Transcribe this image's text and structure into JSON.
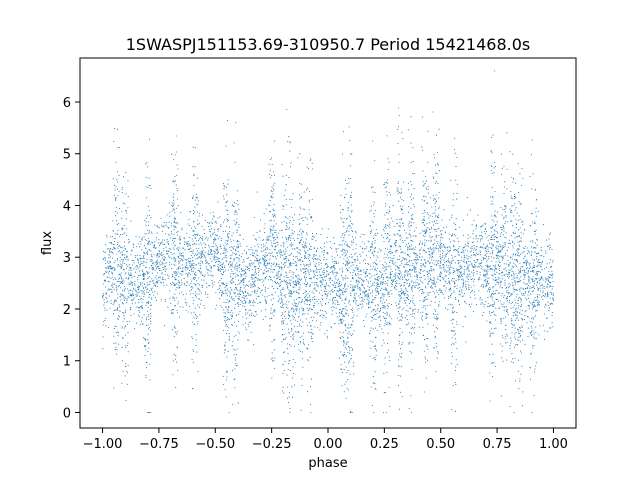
{
  "chart_data": {
    "type": "scatter",
    "title": "1SWASPJ151153.69-310950.7 Period 15421468.0s",
    "xlabel": "phase",
    "ylabel": "flux",
    "xlim": [
      -1.1,
      1.1
    ],
    "ylim": [
      -0.3,
      6.85
    ],
    "grid": false,
    "legend": "none",
    "marker_color": "#1f77b4",
    "x_ticks": [
      -1.0,
      -0.75,
      -0.5,
      -0.25,
      0.0,
      0.25,
      0.5,
      0.75,
      1.0
    ],
    "x_tick_labels": [
      "−1.00",
      "−0.75",
      "−0.50",
      "−0.25",
      "0.00",
      "0.25",
      "0.50",
      "0.75",
      "1.00"
    ],
    "y_ticks": [
      0,
      1,
      2,
      3,
      4,
      5,
      6
    ],
    "y_tick_labels": [
      "0",
      "1",
      "2",
      "3",
      "4",
      "5",
      "6"
    ],
    "series": [
      {
        "x": [
          -1.0,
          -0.95,
          -0.9,
          -0.85,
          -0.8,
          -0.75,
          -0.7,
          -0.65,
          -0.6,
          -0.55,
          -0.5,
          -0.45,
          -0.4,
          -0.35,
          -0.3,
          -0.25,
          -0.2,
          -0.15,
          -0.1,
          -0.05,
          0.0,
          0.05,
          0.1,
          0.15,
          0.2,
          0.25,
          0.3,
          0.35,
          0.4,
          0.45,
          0.5,
          0.55,
          0.6,
          0.65,
          0.7,
          0.75,
          0.8,
          0.85,
          0.9,
          0.95,
          1.0
        ],
        "y": [
          2.4,
          2.9,
          2.6,
          2.5,
          2.6,
          2.9,
          3.0,
          2.9,
          2.8,
          3.0,
          3.1,
          2.7,
          2.5,
          2.4,
          2.8,
          3.0,
          2.6,
          2.5,
          2.7,
          2.6,
          2.5,
          2.4,
          2.6,
          2.5,
          2.4,
          2.5,
          2.9,
          2.6,
          2.8,
          3.0,
          2.9,
          2.7,
          2.7,
          3.0,
          2.8,
          2.9,
          2.6,
          2.5,
          2.6,
          2.7,
          2.4
        ]
      }
    ]
  }
}
